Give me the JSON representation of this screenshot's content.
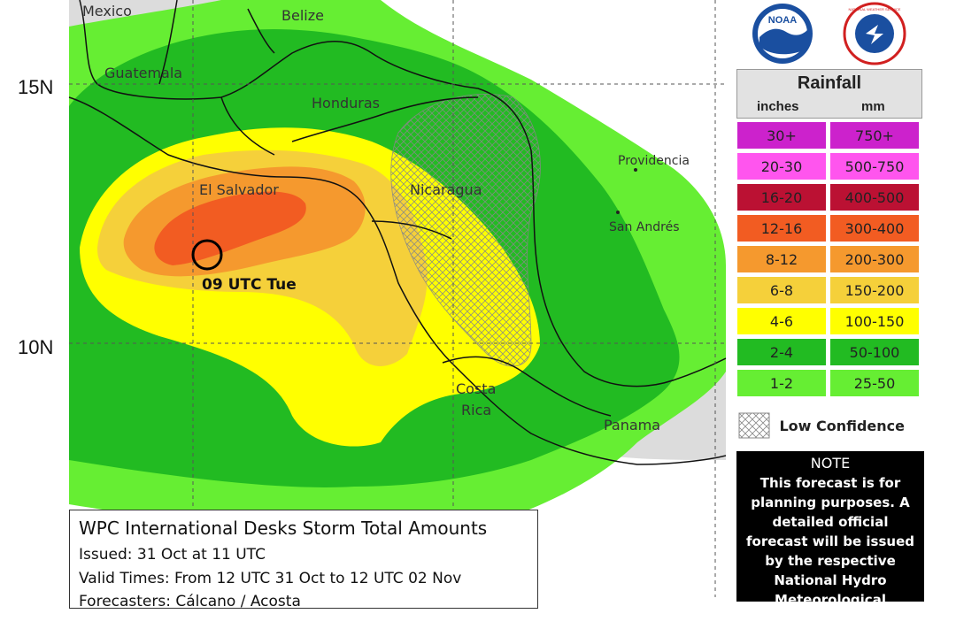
{
  "map": {
    "lat_labels": [
      "15N",
      "10N"
    ],
    "countries": [
      "Mexico",
      "Belize",
      "Guatemala",
      "Honduras",
      "El Salvador",
      "Nicaragua",
      "Costa",
      "Rica",
      "Panama"
    ],
    "islands": [
      "Providencia",
      "San Andrés"
    ],
    "storm_marker": {
      "label": "09 UTC Tue"
    },
    "colors": {
      "land": "#dcdcdc",
      "water": "#ffffff",
      "c_1_2": "#66ee33",
      "c_2_4": "#22bb22",
      "c_4_6": "#ffff00",
      "c_6_8": "#f5d03a",
      "c_8_12": "#f5992e",
      "c_12_16": "#f25c22"
    }
  },
  "legend": {
    "title": "Rainfall",
    "unit_inches": "inches",
    "unit_mm": "mm",
    "rows": [
      {
        "inches": "30+",
        "mm": "750+",
        "color": "#cc22cc"
      },
      {
        "inches": "20-30",
        "mm": "500-750",
        "color": "#ff55ee"
      },
      {
        "inches": "16-20",
        "mm": "400-500",
        "color": "#bb1133"
      },
      {
        "inches": "12-16",
        "mm": "300-400",
        "color": "#f25c22"
      },
      {
        "inches": "8-12",
        "mm": "200-300",
        "color": "#f5992e"
      },
      {
        "inches": "6-8",
        "mm": "150-200",
        "color": "#f5d03a"
      },
      {
        "inches": "4-6",
        "mm": "100-150",
        "color": "#ffff00"
      },
      {
        "inches": "2-4",
        "mm": "50-100",
        "color": "#22bb22"
      },
      {
        "inches": "1-2",
        "mm": "25-50",
        "color": "#66ee33"
      }
    ],
    "low_confidence": "Low Confidence"
  },
  "note": {
    "title": "NOTE",
    "body": "This forecast is for planning purposes. A detailed official forecast will be issued by the respective National Hydro Meteorological Service."
  },
  "info": {
    "title": "WPC International Desks Storm Total Amounts",
    "issued": "Issued:  31 Oct at 11 UTC",
    "valid": "Valid Times:  From 12 UTC 31 Oct  to  12 UTC 02 Nov",
    "forecasters": "Forecasters: Cálcano / Acosta"
  },
  "logos": [
    "NOAA",
    "NATIONAL WEATHER SERVICE"
  ]
}
